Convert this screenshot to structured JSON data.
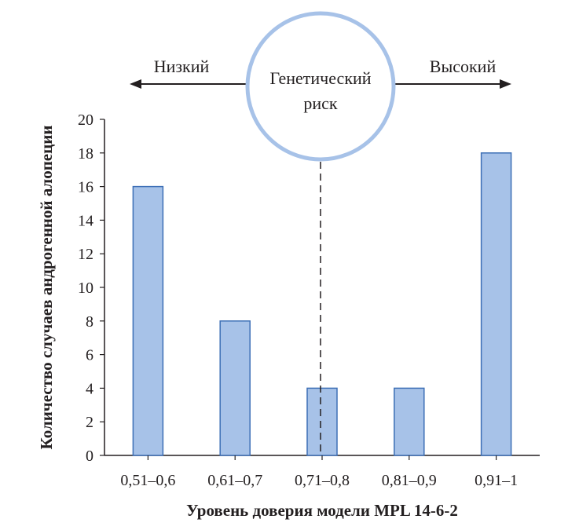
{
  "chart_data": {
    "type": "bar",
    "categories": [
      "0,51–0,6",
      "0,61–0,7",
      "0,71–0,8",
      "0,81–0,9",
      "0,91–1"
    ],
    "values": [
      16,
      8,
      4,
      4,
      18
    ],
    "xlabel": "Уровень доверия модели MPL 14-6-2",
    "ylabel": "Количество случаев андрогенной алопеции",
    "ylim": [
      0,
      20
    ],
    "yticks": [
      0,
      2,
      4,
      6,
      8,
      10,
      12,
      14,
      16,
      18,
      20
    ],
    "grid": false,
    "threshold_line": {
      "style": "dashed",
      "x_position": "middle of 0,71–0,8"
    },
    "annotation": {
      "circle_lines": [
        "Генетический",
        "риск"
      ],
      "left_arrow_label": "Низкий",
      "right_arrow_label": "Высокий"
    },
    "colors": {
      "bar_fill": "#a7c2e8",
      "bar_stroke": "#3d6fb6",
      "circle": "#a7c2e8"
    }
  }
}
